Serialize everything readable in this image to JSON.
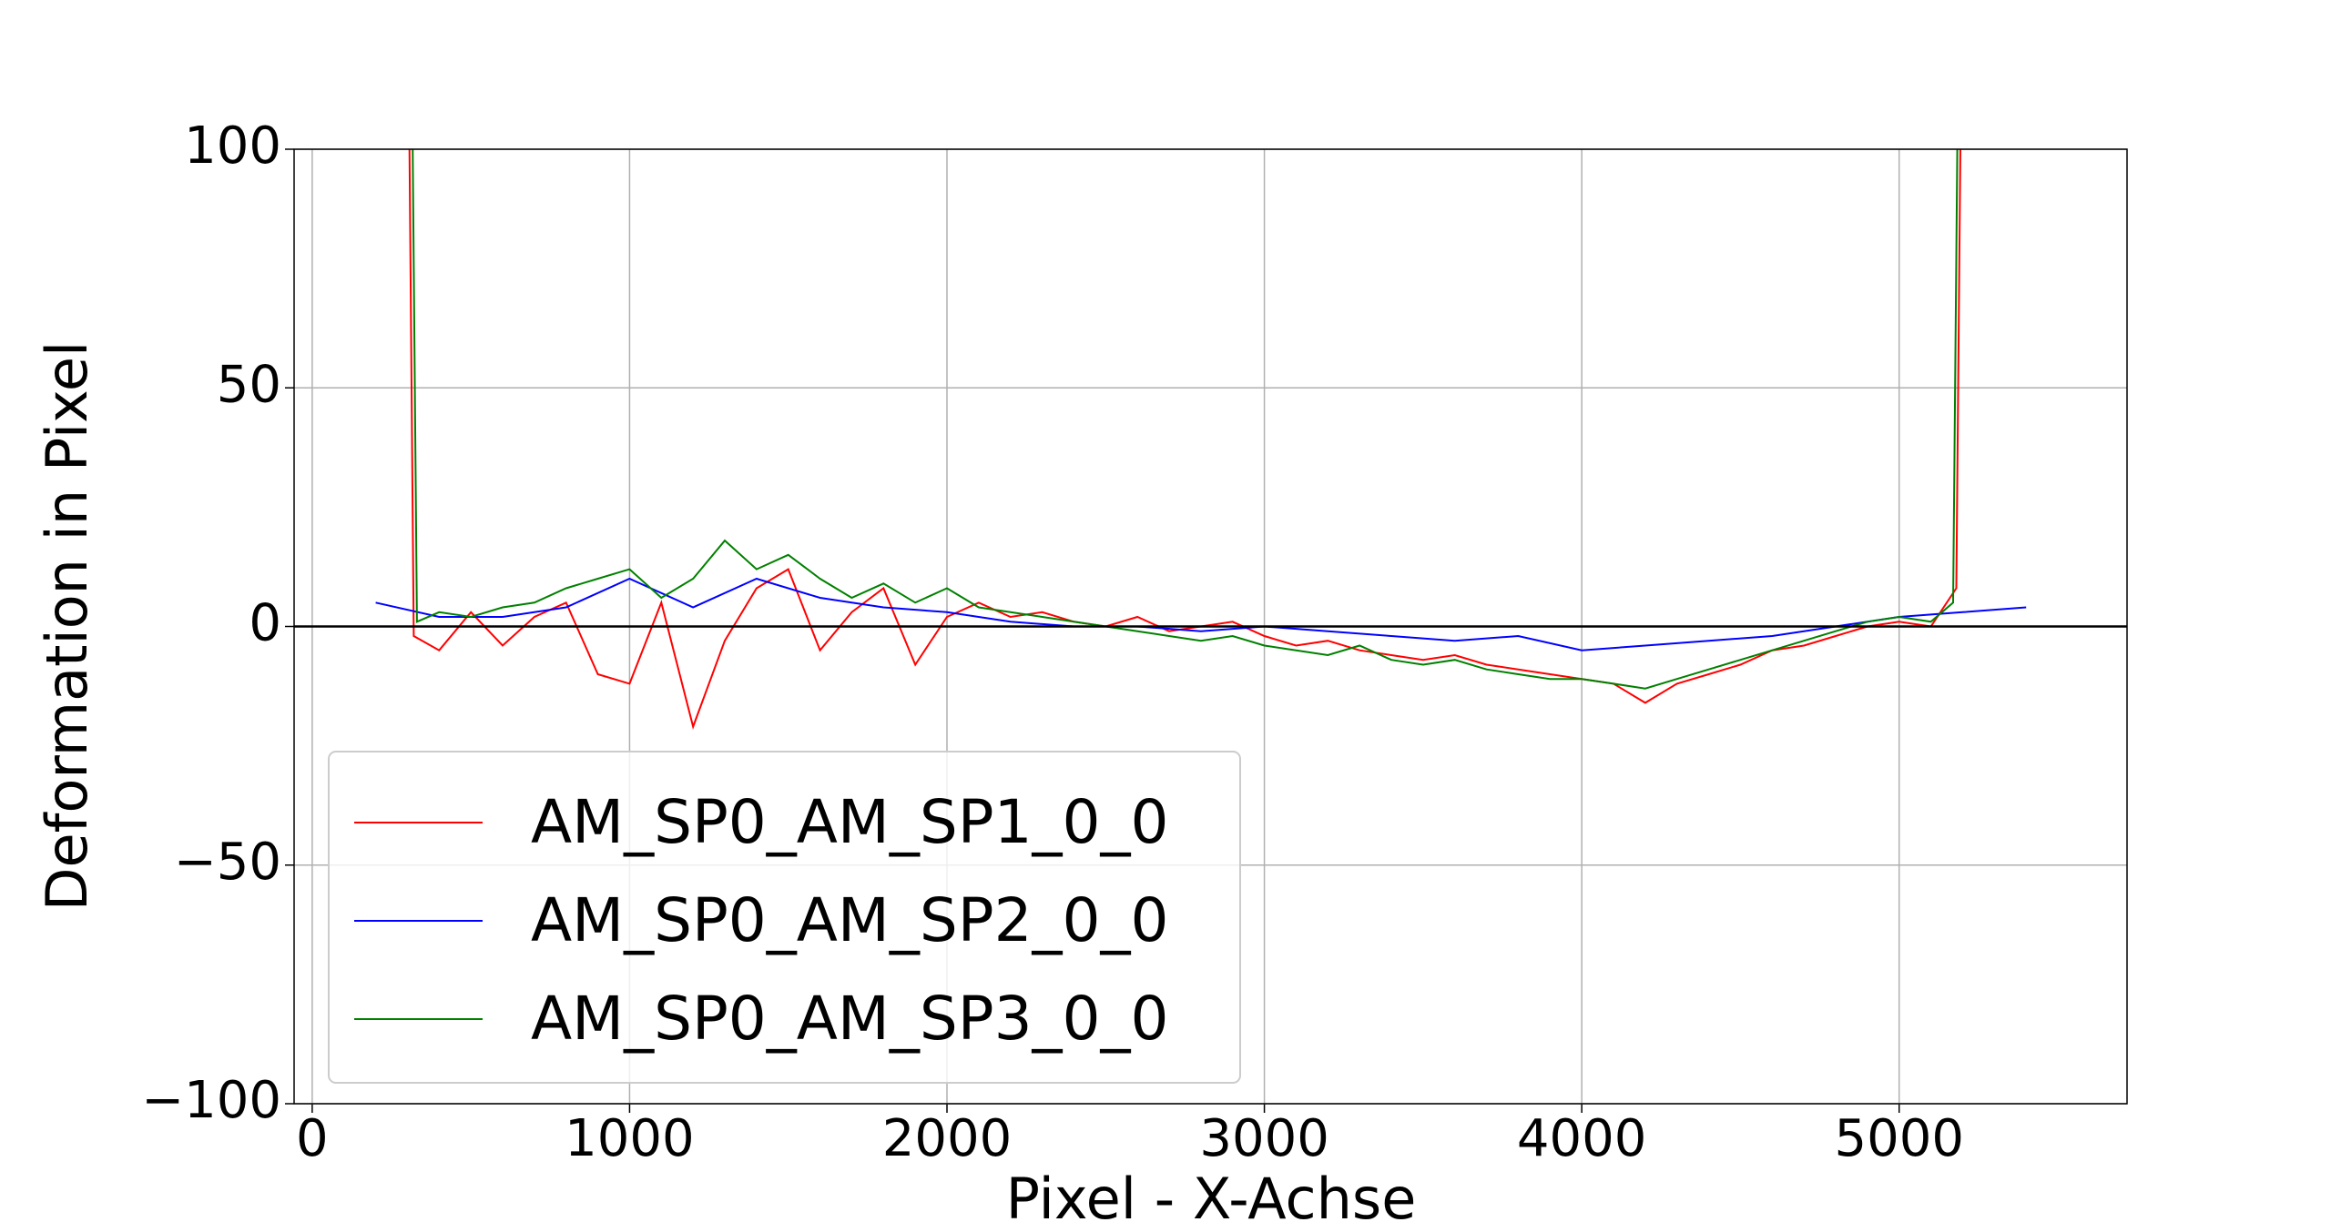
{
  "chart_data": {
    "type": "line",
    "xlabel": "Pixel - X-Achse",
    "ylabel": "Deformation in Pixel",
    "xlim": [
      -57,
      5718
    ],
    "ylim": [
      -100,
      100
    ],
    "xticks": [
      0,
      1000,
      2000,
      3000,
      4000,
      5000
    ],
    "yticks": [
      {
        "value": -100,
        "label": "−100"
      },
      {
        "value": -50,
        "label": "−50"
      },
      0,
      50,
      100
    ],
    "grid": true,
    "axhline": 0,
    "legend": "lower left",
    "series": [
      {
        "name": "AM_SP0_AM_SP1_0_0",
        "color": "#ff0000",
        "x": [
          300,
          320,
          400,
          500,
          600,
          700,
          800,
          900,
          1000,
          1100,
          1200,
          1300,
          1400,
          1500,
          1600,
          1700,
          1800,
          1900,
          2000,
          2100,
          2200,
          2300,
          2400,
          2500,
          2600,
          2700,
          2800,
          2900,
          3000,
          3100,
          3200,
          3300,
          3400,
          3500,
          3600,
          3700,
          3800,
          3900,
          4000,
          4100,
          4200,
          4300,
          4400,
          4500,
          4600,
          4700,
          4800,
          4900,
          5000,
          5100,
          5180,
          5200
        ],
        "values": [
          150,
          -2,
          -5,
          3,
          -4,
          2,
          5,
          -10,
          -12,
          5,
          -21,
          -3,
          8,
          12,
          -5,
          3,
          8,
          -8,
          2,
          5,
          2,
          3,
          1,
          0,
          2,
          -1,
          0,
          1,
          -2,
          -4,
          -3,
          -5,
          -6,
          -7,
          -6,
          -8,
          -9,
          -10,
          -11,
          -12,
          -16,
          -12,
          -10,
          -8,
          -5,
          -4,
          -2,
          0,
          1,
          0,
          8,
          150
        ]
      },
      {
        "name": "AM_SP0_AM_SP2_0_0",
        "color": "#0000ff",
        "x": [
          200,
          400,
          600,
          800,
          1000,
          1200,
          1400,
          1600,
          1800,
          2000,
          2200,
          2400,
          2600,
          2800,
          3000,
          3200,
          3400,
          3600,
          3800,
          4000,
          4200,
          4400,
          4600,
          4800,
          5000,
          5200,
          5400
        ],
        "values": [
          5,
          2,
          2,
          4,
          10,
          4,
          10,
          6,
          4,
          3,
          1,
          0,
          0,
          -1,
          0,
          -1,
          -2,
          -3,
          -2,
          -5,
          -4,
          -3,
          -2,
          0,
          2,
          3,
          4
        ]
      },
      {
        "name": "AM_SP0_AM_SP3_0_0",
        "color": "#008000",
        "x": [
          310,
          330,
          400,
          500,
          600,
          700,
          800,
          900,
          1000,
          1100,
          1200,
          1300,
          1400,
          1500,
          1600,
          1700,
          1800,
          1900,
          2000,
          2100,
          2200,
          2300,
          2400,
          2500,
          2600,
          2700,
          2800,
          2900,
          3000,
          3100,
          3200,
          3300,
          3400,
          3500,
          3600,
          3700,
          3800,
          3900,
          4000,
          4100,
          4200,
          4300,
          4400,
          4500,
          4600,
          4700,
          4800,
          4900,
          5000,
          5100,
          5170,
          5190
        ],
        "values": [
          150,
          1,
          3,
          2,
          4,
          5,
          8,
          10,
          12,
          6,
          10,
          18,
          12,
          15,
          10,
          6,
          9,
          5,
          8,
          4,
          3,
          2,
          1,
          0,
          -1,
          -2,
          -3,
          -2,
          -4,
          -5,
          -6,
          -4,
          -7,
          -8,
          -7,
          -9,
          -10,
          -11,
          -11,
          -12,
          -13,
          -11,
          -9,
          -7,
          -5,
          -3,
          -1,
          1,
          2,
          1,
          5,
          150
        ]
      }
    ]
  }
}
